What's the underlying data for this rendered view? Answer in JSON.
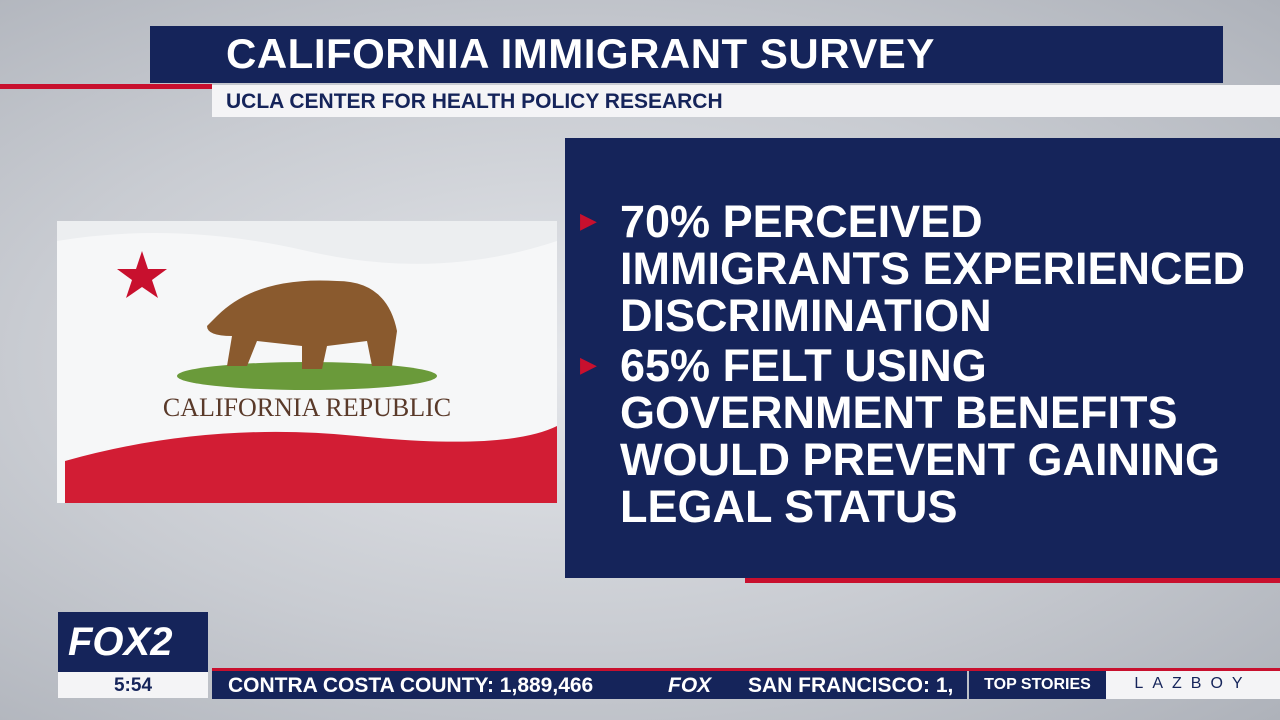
{
  "header": {
    "title": "CALIFORNIA IMMIGRANT SURVEY",
    "subtitle": "UCLA CENTER FOR HEALTH POLICY RESEARCH"
  },
  "flag": {
    "label": "CALIFORNIA REPUBLIC"
  },
  "bullets": [
    "70% PERCEIVED IMMIGRANTS EXPERIENCED DISCRIMINATION",
    "65% FELT USING GOVERNMENT BENEFITS WOULD PREVENT GAINING LEGAL STATUS"
  ],
  "bug": {
    "logo": "FOX2",
    "time": "5:54"
  },
  "ticker": {
    "items": [
      "CONTRA COSTA COUNTY: 1,889,466",
      "FOX",
      "SAN FRANCISCO: 1,"
    ],
    "section": "TOP STORIES",
    "sponsor": "LAZBOY"
  }
}
